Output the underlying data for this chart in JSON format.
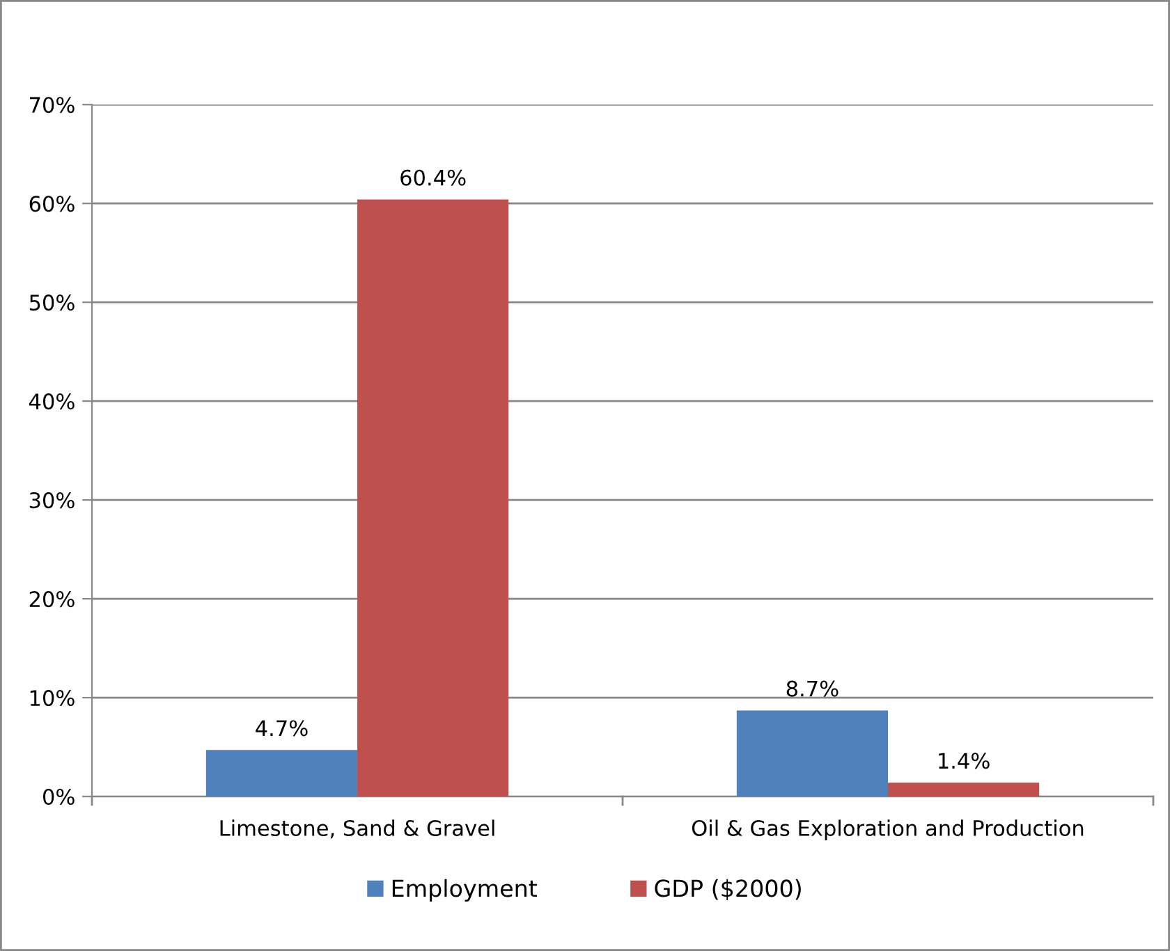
{
  "chart_data": {
    "type": "bar",
    "categories": [
      "Limestone, Sand & Gravel",
      "Oil & Gas Exploration and Production"
    ],
    "series": [
      {
        "name": "Employment",
        "color": "#4f81bd",
        "values": [
          4.7,
          8.7
        ],
        "value_labels": [
          "4.7%",
          "8.7%"
        ]
      },
      {
        "name": "GDP ($2000)",
        "color": "#c0504d",
        "values": [
          60.4,
          1.4
        ],
        "value_labels": [
          "60.4%",
          "1.4%"
        ]
      }
    ],
    "ylim": [
      0,
      70
    ],
    "yticks": [
      {
        "value": 0,
        "label": "0%"
      },
      {
        "value": 10,
        "label": "10%"
      },
      {
        "value": 20,
        "label": "20%"
      },
      {
        "value": 30,
        "label": "30%"
      },
      {
        "value": 40,
        "label": "40%"
      },
      {
        "value": 50,
        "label": "50%"
      },
      {
        "value": 60,
        "label": "60%"
      },
      {
        "value": 70,
        "label": "70%"
      }
    ],
    "grid": "y",
    "legend": "bottom"
  }
}
